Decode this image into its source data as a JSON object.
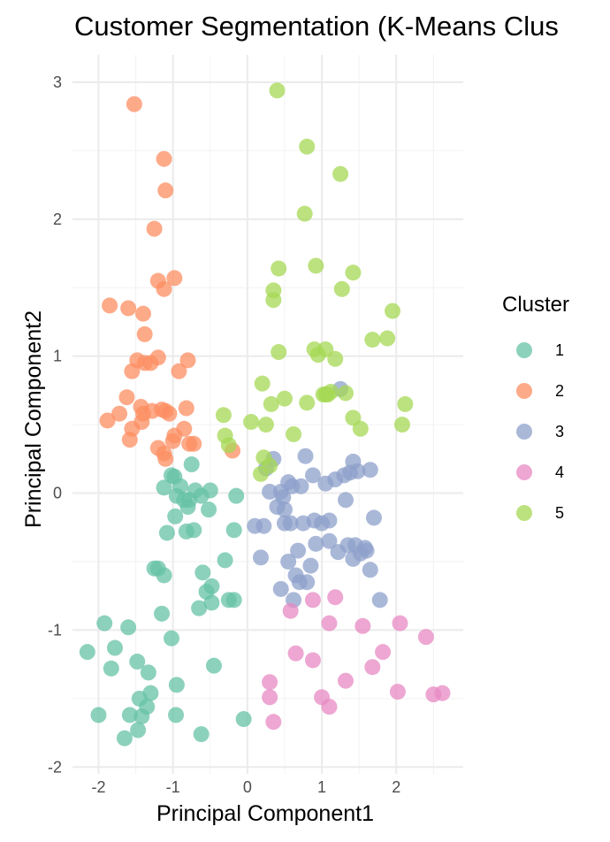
{
  "chart_data": {
    "type": "scatter",
    "title": "Customer Segmentation (K-Means Clus",
    "xlabel": "Principal Component1",
    "ylabel": "Principal Component2",
    "xlim": [
      -2.35,
      2.9
    ],
    "ylim": [
      -2.05,
      3.2
    ],
    "x_ticks": [
      -2,
      -1,
      0,
      1,
      2
    ],
    "y_ticks": [
      -2,
      -1,
      0,
      1,
      2,
      3
    ],
    "x_tick_labels": [
      "-2",
      "-1",
      "0",
      "1",
      "2"
    ],
    "y_tick_labels": [
      "-2",
      "-1",
      "0",
      "1",
      "2",
      "3"
    ],
    "grid": true,
    "legend": {
      "title": "Cluster",
      "position": "right"
    },
    "series": [
      {
        "name": "1",
        "color": "#66c2a5",
        "points": [
          [
            -2.15,
            -1.16
          ],
          [
            -1.92,
            -0.95
          ],
          [
            -2.0,
            -1.62
          ],
          [
            -1.83,
            -1.28
          ],
          [
            -1.78,
            -1.13
          ],
          [
            -1.65,
            -1.79
          ],
          [
            -1.6,
            -0.98
          ],
          [
            -1.58,
            -1.62
          ],
          [
            -1.48,
            -1.23
          ],
          [
            -1.45,
            -1.5
          ],
          [
            -1.42,
            -1.63
          ],
          [
            -1.47,
            -1.73
          ],
          [
            -1.35,
            -1.56
          ],
          [
            -1.33,
            -1.31
          ],
          [
            -1.3,
            -1.46
          ],
          [
            -1.25,
            -0.55
          ],
          [
            -1.2,
            -0.55
          ],
          [
            -1.15,
            -0.88
          ],
          [
            -1.12,
            -0.6
          ],
          [
            -1.08,
            -0.29
          ],
          [
            -1.02,
            -1.06
          ],
          [
            -0.95,
            -1.4
          ],
          [
            -0.96,
            -1.62
          ],
          [
            -1.12,
            0.04
          ],
          [
            -1.02,
            0.13
          ],
          [
            -0.98,
            0.12
          ],
          [
            -0.95,
            -0.02
          ],
          [
            -0.97,
            -0.17
          ],
          [
            -0.9,
            0.05
          ],
          [
            -0.85,
            -0.05
          ],
          [
            -0.82,
            -0.28
          ],
          [
            -0.8,
            -0.1
          ],
          [
            -0.75,
            0.21
          ],
          [
            -0.72,
            -0.27
          ],
          [
            -0.7,
            0.02
          ],
          [
            -0.65,
            -0.84
          ],
          [
            -0.6,
            -0.58
          ],
          [
            -0.62,
            -1.76
          ],
          [
            -0.55,
            -0.72
          ],
          [
            -0.52,
            -0.12
          ],
          [
            -0.5,
            0.02
          ],
          [
            -0.48,
            -0.68
          ],
          [
            -0.45,
            -1.26
          ],
          [
            -0.48,
            -0.8
          ],
          [
            -0.3,
            -0.49
          ],
          [
            -0.25,
            -0.78
          ],
          [
            -0.18,
            -0.78
          ],
          [
            -0.18,
            -0.27
          ],
          [
            -0.15,
            -0.02
          ],
          [
            -0.05,
            -1.65
          ],
          [
            -0.62,
            -0.02
          ],
          [
            -0.78,
            -0.05
          ]
        ]
      },
      {
        "name": "2",
        "color": "#fc8d62",
        "points": [
          [
            -1.52,
            2.84
          ],
          [
            -1.12,
            2.44
          ],
          [
            -1.1,
            2.21
          ],
          [
            -1.25,
            1.93
          ],
          [
            -1.2,
            1.55
          ],
          [
            -1.12,
            1.49
          ],
          [
            -0.98,
            1.57
          ],
          [
            -1.85,
            1.37
          ],
          [
            -1.6,
            1.35
          ],
          [
            -1.4,
            1.31
          ],
          [
            -1.38,
            1.16
          ],
          [
            -1.48,
            0.97
          ],
          [
            -1.38,
            0.95
          ],
          [
            -1.3,
            0.95
          ],
          [
            -1.2,
            0.99
          ],
          [
            -1.55,
            0.89
          ],
          [
            -0.92,
            0.89
          ],
          [
            -0.8,
            0.97
          ],
          [
            -1.62,
            0.7
          ],
          [
            -1.43,
            0.63
          ],
          [
            -1.4,
            0.58
          ],
          [
            -1.28,
            0.6
          ],
          [
            -1.15,
            0.61
          ],
          [
            -1.1,
            0.6
          ],
          [
            -1.05,
            0.58
          ],
          [
            -0.82,
            0.62
          ],
          [
            -1.88,
            0.53
          ],
          [
            -1.72,
            0.58
          ],
          [
            -1.55,
            0.47
          ],
          [
            -1.58,
            0.39
          ],
          [
            -1.42,
            0.52
          ],
          [
            -1.2,
            0.33
          ],
          [
            -1.12,
            0.29
          ],
          [
            -1.0,
            0.38
          ],
          [
            -0.98,
            0.42
          ],
          [
            -0.85,
            0.47
          ],
          [
            -0.78,
            0.36
          ],
          [
            -0.72,
            0.36
          ],
          [
            -0.2,
            0.31
          ],
          [
            -1.1,
            0.25
          ]
        ]
      },
      {
        "name": "3",
        "color": "#8da0cb",
        "points": [
          [
            0.1,
            -0.24
          ],
          [
            0.22,
            -0.24
          ],
          [
            0.18,
            -0.47
          ],
          [
            0.35,
            0.25
          ],
          [
            0.25,
            0.18
          ],
          [
            0.3,
            0.01
          ],
          [
            0.4,
            -0.1
          ],
          [
            0.45,
            0.01
          ],
          [
            0.48,
            -0.03
          ],
          [
            0.5,
            -0.12
          ],
          [
            0.5,
            -0.22
          ],
          [
            0.55,
            -0.5
          ],
          [
            0.58,
            -0.22
          ],
          [
            0.6,
            0.05
          ],
          [
            0.55,
            0.08
          ],
          [
            0.62,
            -0.78
          ],
          [
            0.65,
            -0.6
          ],
          [
            0.68,
            -0.42
          ],
          [
            0.7,
            -0.65
          ],
          [
            0.75,
            -0.22
          ],
          [
            0.72,
            0.05
          ],
          [
            0.8,
            -0.65
          ],
          [
            0.78,
            0.27
          ],
          [
            0.85,
            -0.53
          ],
          [
            0.88,
            0.13
          ],
          [
            0.9,
            -0.2
          ],
          [
            0.92,
            -0.37
          ],
          [
            1.0,
            -0.22
          ],
          [
            1.05,
            0.07
          ],
          [
            1.1,
            -0.2
          ],
          [
            1.1,
            -0.35
          ],
          [
            1.18,
            0.1
          ],
          [
            1.22,
            -0.43
          ],
          [
            1.25,
            0.76
          ],
          [
            1.3,
            0.13
          ],
          [
            1.32,
            -0.05
          ],
          [
            1.35,
            -0.38
          ],
          [
            1.38,
            0.15
          ],
          [
            1.42,
            0.23
          ],
          [
            1.42,
            -0.48
          ],
          [
            1.45,
            -0.38
          ],
          [
            1.48,
            0.16
          ],
          [
            1.52,
            -0.44
          ],
          [
            1.58,
            -0.4
          ],
          [
            1.65,
            -0.56
          ],
          [
            1.65,
            0.17
          ],
          [
            1.7,
            -0.18
          ],
          [
            1.78,
            -0.78
          ],
          [
            0.45,
            -0.7
          ],
          [
            1.6,
            -0.42
          ]
        ]
      },
      {
        "name": "4",
        "color": "#e78ac3",
        "points": [
          [
            0.3,
            -1.38
          ],
          [
            0.3,
            -1.49
          ],
          [
            0.35,
            -1.67
          ],
          [
            0.58,
            -0.86
          ],
          [
            0.65,
            -1.17
          ],
          [
            0.88,
            -0.78
          ],
          [
            0.88,
            -1.22
          ],
          [
            1.0,
            -1.49
          ],
          [
            1.1,
            -1.56
          ],
          [
            1.1,
            -0.95
          ],
          [
            1.18,
            -0.76
          ],
          [
            1.32,
            -1.37
          ],
          [
            1.55,
            -0.97
          ],
          [
            1.68,
            -1.27
          ],
          [
            1.82,
            -1.16
          ],
          [
            2.05,
            -0.95
          ],
          [
            2.02,
            -1.45
          ],
          [
            2.4,
            -1.05
          ],
          [
            2.5,
            -1.47
          ],
          [
            2.62,
            -1.46
          ]
        ]
      },
      {
        "name": "5",
        "color": "#a6d854",
        "points": [
          [
            0.4,
            2.94
          ],
          [
            0.8,
            2.53
          ],
          [
            1.25,
            2.33
          ],
          [
            0.77,
            2.04
          ],
          [
            0.42,
            1.64
          ],
          [
            0.92,
            1.66
          ],
          [
            0.35,
            1.48
          ],
          [
            0.35,
            1.41
          ],
          [
            1.42,
            1.61
          ],
          [
            1.27,
            1.49
          ],
          [
            1.95,
            1.33
          ],
          [
            0.42,
            1.03
          ],
          [
            0.9,
            1.05
          ],
          [
            0.95,
            1.01
          ],
          [
            1.05,
            1.05
          ],
          [
            1.18,
            0.98
          ],
          [
            1.68,
            1.12
          ],
          [
            1.88,
            1.13
          ],
          [
            1.02,
            0.72
          ],
          [
            1.05,
            0.72
          ],
          [
            1.08,
            0.72
          ],
          [
            1.12,
            0.74
          ],
          [
            1.32,
            0.73
          ],
          [
            0.8,
            0.66
          ],
          [
            0.2,
            0.8
          ],
          [
            0.5,
            0.69
          ],
          [
            0.32,
            0.65
          ],
          [
            1.42,
            0.55
          ],
          [
            1.52,
            0.47
          ],
          [
            2.12,
            0.65
          ],
          [
            2.08,
            0.5
          ],
          [
            0.05,
            0.52
          ],
          [
            0.25,
            0.5
          ],
          [
            -0.32,
            0.57
          ],
          [
            -0.3,
            0.42
          ],
          [
            -0.25,
            0.35
          ],
          [
            0.62,
            0.43
          ],
          [
            0.22,
            0.26
          ],
          [
            0.18,
            0.14
          ],
          [
            0.3,
            0.2
          ]
        ]
      }
    ]
  }
}
